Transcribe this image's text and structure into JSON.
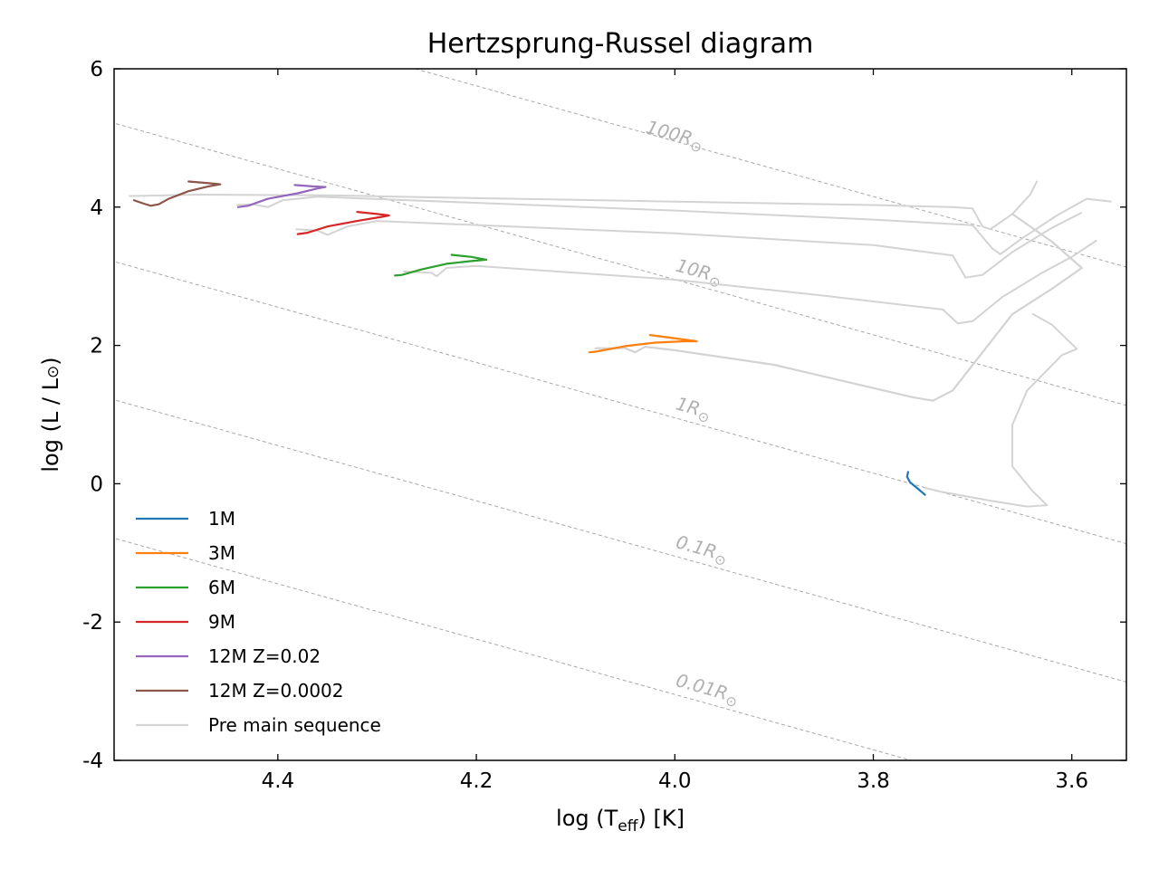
{
  "chart_data": {
    "type": "line",
    "title": "Hertzsprung-Russel diagram",
    "xlabel_main": "log (T",
    "xlabel_sub": "eff",
    "xlabel_end": ") [K]",
    "ylabel_main": "log (L / L",
    "ylabel_sym": "⊙",
    "ylabel_end": ")",
    "xlim": [
      4.565,
      3.545
    ],
    "ylim": [
      -4,
      6
    ],
    "x_inverted": true,
    "grid": false,
    "legend_position": "lower-left",
    "xticks": [
      {
        "value": 4.4,
        "label": "4.4"
      },
      {
        "value": 4.2,
        "label": "4.2"
      },
      {
        "value": 4.0,
        "label": "4.0"
      },
      {
        "value": 3.8,
        "label": "3.8"
      },
      {
        "value": 3.6,
        "label": "3.6"
      }
    ],
    "yticks": [
      {
        "value": -4,
        "label": "-4"
      },
      {
        "value": -2,
        "label": "-2"
      },
      {
        "value": 0,
        "label": "0"
      },
      {
        "value": 2,
        "label": "2"
      },
      {
        "value": 4,
        "label": "4"
      },
      {
        "value": 6,
        "label": "6"
      }
    ],
    "radius_lines": [
      {
        "radius": 100,
        "label": "100R",
        "sym": "⊙",
        "label_x": 4.03,
        "label_y": 5.08
      },
      {
        "radius": 10,
        "label": "10R",
        "sym": "⊙",
        "label_x": 4.0,
        "label_y": 3.08
      },
      {
        "radius": 1,
        "label": "1R",
        "sym": "⊙",
        "label_x": 4.0,
        "label_y": 1.08
      },
      {
        "radius": 0.1,
        "label": "0.1R",
        "sym": "⊙",
        "label_x": 4.0,
        "label_y": -0.92
      },
      {
        "radius": 0.01,
        "label": "0.01R",
        "sym": "⊙",
        "label_x": 4.0,
        "label_y": -2.92
      }
    ],
    "series": [
      {
        "name": "1M",
        "color": "#1f77b4",
        "points": [
          [
            3.748,
            -0.16
          ],
          [
            3.756,
            -0.06
          ],
          [
            3.763,
            0.02
          ],
          [
            3.766,
            0.1
          ],
          [
            3.765,
            0.17
          ]
        ]
      },
      {
        "name": "3M",
        "color": "#ff7f0e",
        "points": [
          [
            4.086,
            1.9
          ],
          [
            4.08,
            1.91
          ],
          [
            4.05,
            1.99
          ],
          [
            4.02,
            2.04
          ],
          [
            3.99,
            2.06
          ],
          [
            3.978,
            2.06
          ],
          [
            3.998,
            2.1
          ],
          [
            4.025,
            2.15
          ]
        ]
      },
      {
        "name": "6M",
        "color": "#2ca02c",
        "points": [
          [
            4.282,
            3.01
          ],
          [
            4.275,
            3.02
          ],
          [
            4.255,
            3.1
          ],
          [
            4.23,
            3.18
          ],
          [
            4.205,
            3.22
          ],
          [
            4.19,
            3.24
          ],
          [
            4.205,
            3.28
          ],
          [
            4.225,
            3.31
          ]
        ]
      },
      {
        "name": "9M",
        "color": "#d62728",
        "points": [
          [
            4.38,
            3.61
          ],
          [
            4.37,
            3.63
          ],
          [
            4.35,
            3.72
          ],
          [
            4.32,
            3.8
          ],
          [
            4.295,
            3.86
          ],
          [
            4.288,
            3.88
          ],
          [
            4.3,
            3.9
          ],
          [
            4.32,
            3.93
          ]
        ]
      },
      {
        "name": "12M Z=0.02",
        "color": "#9467bd",
        "points": [
          [
            4.44,
            4.0
          ],
          [
            4.43,
            4.02
          ],
          [
            4.41,
            4.12
          ],
          [
            4.38,
            4.2
          ],
          [
            4.36,
            4.27
          ],
          [
            4.352,
            4.29
          ],
          [
            4.365,
            4.3
          ],
          [
            4.383,
            4.32
          ]
        ]
      },
      {
        "name": "12M Z=0.0002",
        "color": "#8c564b",
        "points": [
          [
            4.545,
            4.1
          ],
          [
            4.535,
            4.05
          ],
          [
            4.528,
            4.02
          ],
          [
            4.52,
            4.04
          ],
          [
            4.51,
            4.12
          ],
          [
            4.49,
            4.23
          ],
          [
            4.47,
            4.3
          ],
          [
            4.458,
            4.33
          ],
          [
            4.472,
            4.35
          ],
          [
            4.49,
            4.37
          ]
        ]
      },
      {
        "name": "Pre main sequence",
        "color": "#d3d3d3",
        "points": [
          [
            4.08,
            1.96
          ],
          [
            4.05,
            1.96
          ],
          [
            4.04,
            1.9
          ],
          [
            4.03,
            1.98
          ],
          [
            4.0,
            1.93
          ],
          [
            3.9,
            1.72
          ],
          [
            3.82,
            1.45
          ],
          [
            3.76,
            1.25
          ],
          [
            3.74,
            1.2
          ],
          [
            3.72,
            1.35
          ],
          [
            3.69,
            1.9
          ],
          [
            3.66,
            2.45
          ],
          [
            3.62,
            2.82
          ],
          [
            3.59,
            3.12
          ],
          [
            3.62,
            3.5
          ],
          [
            3.66,
            3.9
          ]
        ]
      }
    ],
    "pms_extra_tracks": [
      [
        [
          4.274,
          3.07
        ],
        [
          4.245,
          3.05
        ],
        [
          4.24,
          3.0
        ],
        [
          4.23,
          3.12
        ],
        [
          4.2,
          3.15
        ],
        [
          4.0,
          2.95
        ],
        [
          3.85,
          2.72
        ],
        [
          3.73,
          2.52
        ],
        [
          3.715,
          2.32
        ],
        [
          3.7,
          2.35
        ],
        [
          3.67,
          2.7
        ],
        [
          3.63,
          3.05
        ],
        [
          3.6,
          3.28
        ],
        [
          3.575,
          3.52
        ]
      ],
      [
        [
          4.382,
          3.68
        ],
        [
          4.36,
          3.66
        ],
        [
          4.35,
          3.6
        ],
        [
          4.33,
          3.72
        ],
        [
          4.3,
          3.8
        ],
        [
          4.0,
          3.62
        ],
        [
          3.8,
          3.45
        ],
        [
          3.72,
          3.3
        ],
        [
          3.707,
          2.98
        ],
        [
          3.69,
          3.02
        ],
        [
          3.66,
          3.35
        ],
        [
          3.62,
          3.7
        ],
        [
          3.59,
          3.92
        ]
      ],
      [
        [
          4.442,
          4.03
        ],
        [
          4.425,
          4.04
        ],
        [
          4.41,
          4.0
        ],
        [
          4.395,
          4.1
        ],
        [
          4.36,
          4.15
        ],
        [
          4.0,
          3.95
        ],
        [
          3.8,
          3.82
        ],
        [
          3.7,
          3.74
        ],
        [
          3.68,
          3.4
        ],
        [
          3.672,
          3.32
        ],
        [
          3.65,
          3.55
        ],
        [
          3.615,
          3.88
        ],
        [
          3.585,
          4.12
        ],
        [
          3.56,
          4.08
        ]
      ],
      [
        [
          4.55,
          4.16
        ],
        [
          4.48,
          4.18
        ],
        [
          4.35,
          4.17
        ],
        [
          4.2,
          4.13
        ],
        [
          4.0,
          4.08
        ],
        [
          3.8,
          4.03
        ],
        [
          3.72,
          4.0
        ],
        [
          3.7,
          3.98
        ],
        [
          3.69,
          3.72
        ],
        [
          3.682,
          3.68
        ],
        [
          3.66,
          3.9
        ],
        [
          3.642,
          4.18
        ],
        [
          3.635,
          4.38
        ]
      ],
      [
        [
          3.748,
          -0.06
        ],
        [
          3.73,
          -0.12
        ],
        [
          3.68,
          -0.25
        ],
        [
          3.645,
          -0.33
        ],
        [
          3.625,
          -0.31
        ],
        [
          3.64,
          -0.1
        ],
        [
          3.66,
          0.25
        ],
        [
          3.66,
          0.85
        ],
        [
          3.645,
          1.35
        ],
        [
          3.61,
          1.86
        ],
        [
          3.595,
          1.95
        ],
        [
          3.62,
          2.3
        ],
        [
          3.64,
          2.46
        ]
      ]
    ]
  }
}
